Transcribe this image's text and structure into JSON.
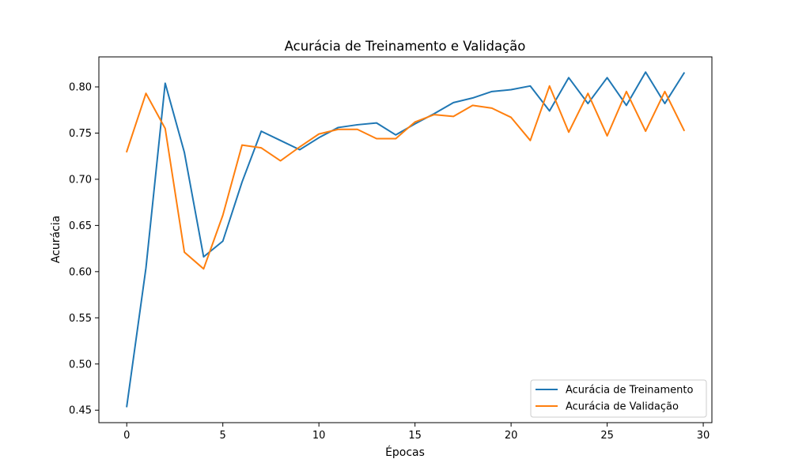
{
  "chart_data": {
    "type": "line",
    "title": "Acurácia de Treinamento e Validação",
    "xlabel": "Épocas",
    "ylabel": "Acurácia",
    "xlim": [
      -1.45,
      30.45
    ],
    "ylim": [
      0.4365,
      0.8325
    ],
    "xticks": [
      0,
      5,
      10,
      15,
      20,
      25,
      30
    ],
    "xtick_labels": [
      "0",
      "5",
      "10",
      "15",
      "20",
      "25",
      "30"
    ],
    "yticks": [
      0.45,
      0.5,
      0.55,
      0.6,
      0.65,
      0.7,
      0.75,
      0.8
    ],
    "ytick_labels": [
      "0.45",
      "0.50",
      "0.55",
      "0.60",
      "0.65",
      "0.70",
      "0.75",
      "0.80"
    ],
    "grid": false,
    "legend_position": "lower-right",
    "x": [
      0,
      1,
      2,
      3,
      4,
      5,
      6,
      7,
      8,
      9,
      10,
      11,
      12,
      13,
      14,
      15,
      16,
      17,
      18,
      19,
      20,
      21,
      22,
      23,
      24,
      25,
      26,
      27,
      28,
      29
    ],
    "series": [
      {
        "name": "Acurácia de Treinamento",
        "color": "#1f77b4",
        "values": [
          0.454,
          0.604,
          0.804,
          0.729,
          0.616,
          0.633,
          0.697,
          0.752,
          0.742,
          0.732,
          0.745,
          0.756,
          0.759,
          0.761,
          0.748,
          0.76,
          0.771,
          0.783,
          0.788,
          0.795,
          0.797,
          0.801,
          0.774,
          0.81,
          0.782,
          0.81,
          0.78,
          0.816,
          0.782,
          0.815
        ]
      },
      {
        "name": "Acurácia de Validação",
        "color": "#ff7f0e",
        "values": [
          0.73,
          0.793,
          0.755,
          0.621,
          0.603,
          0.661,
          0.737,
          0.734,
          0.72,
          0.735,
          0.749,
          0.754,
          0.754,
          0.744,
          0.744,
          0.762,
          0.77,
          0.768,
          0.78,
          0.777,
          0.767,
          0.742,
          0.801,
          0.751,
          0.793,
          0.747,
          0.795,
          0.752,
          0.795,
          0.753
        ]
      }
    ]
  }
}
